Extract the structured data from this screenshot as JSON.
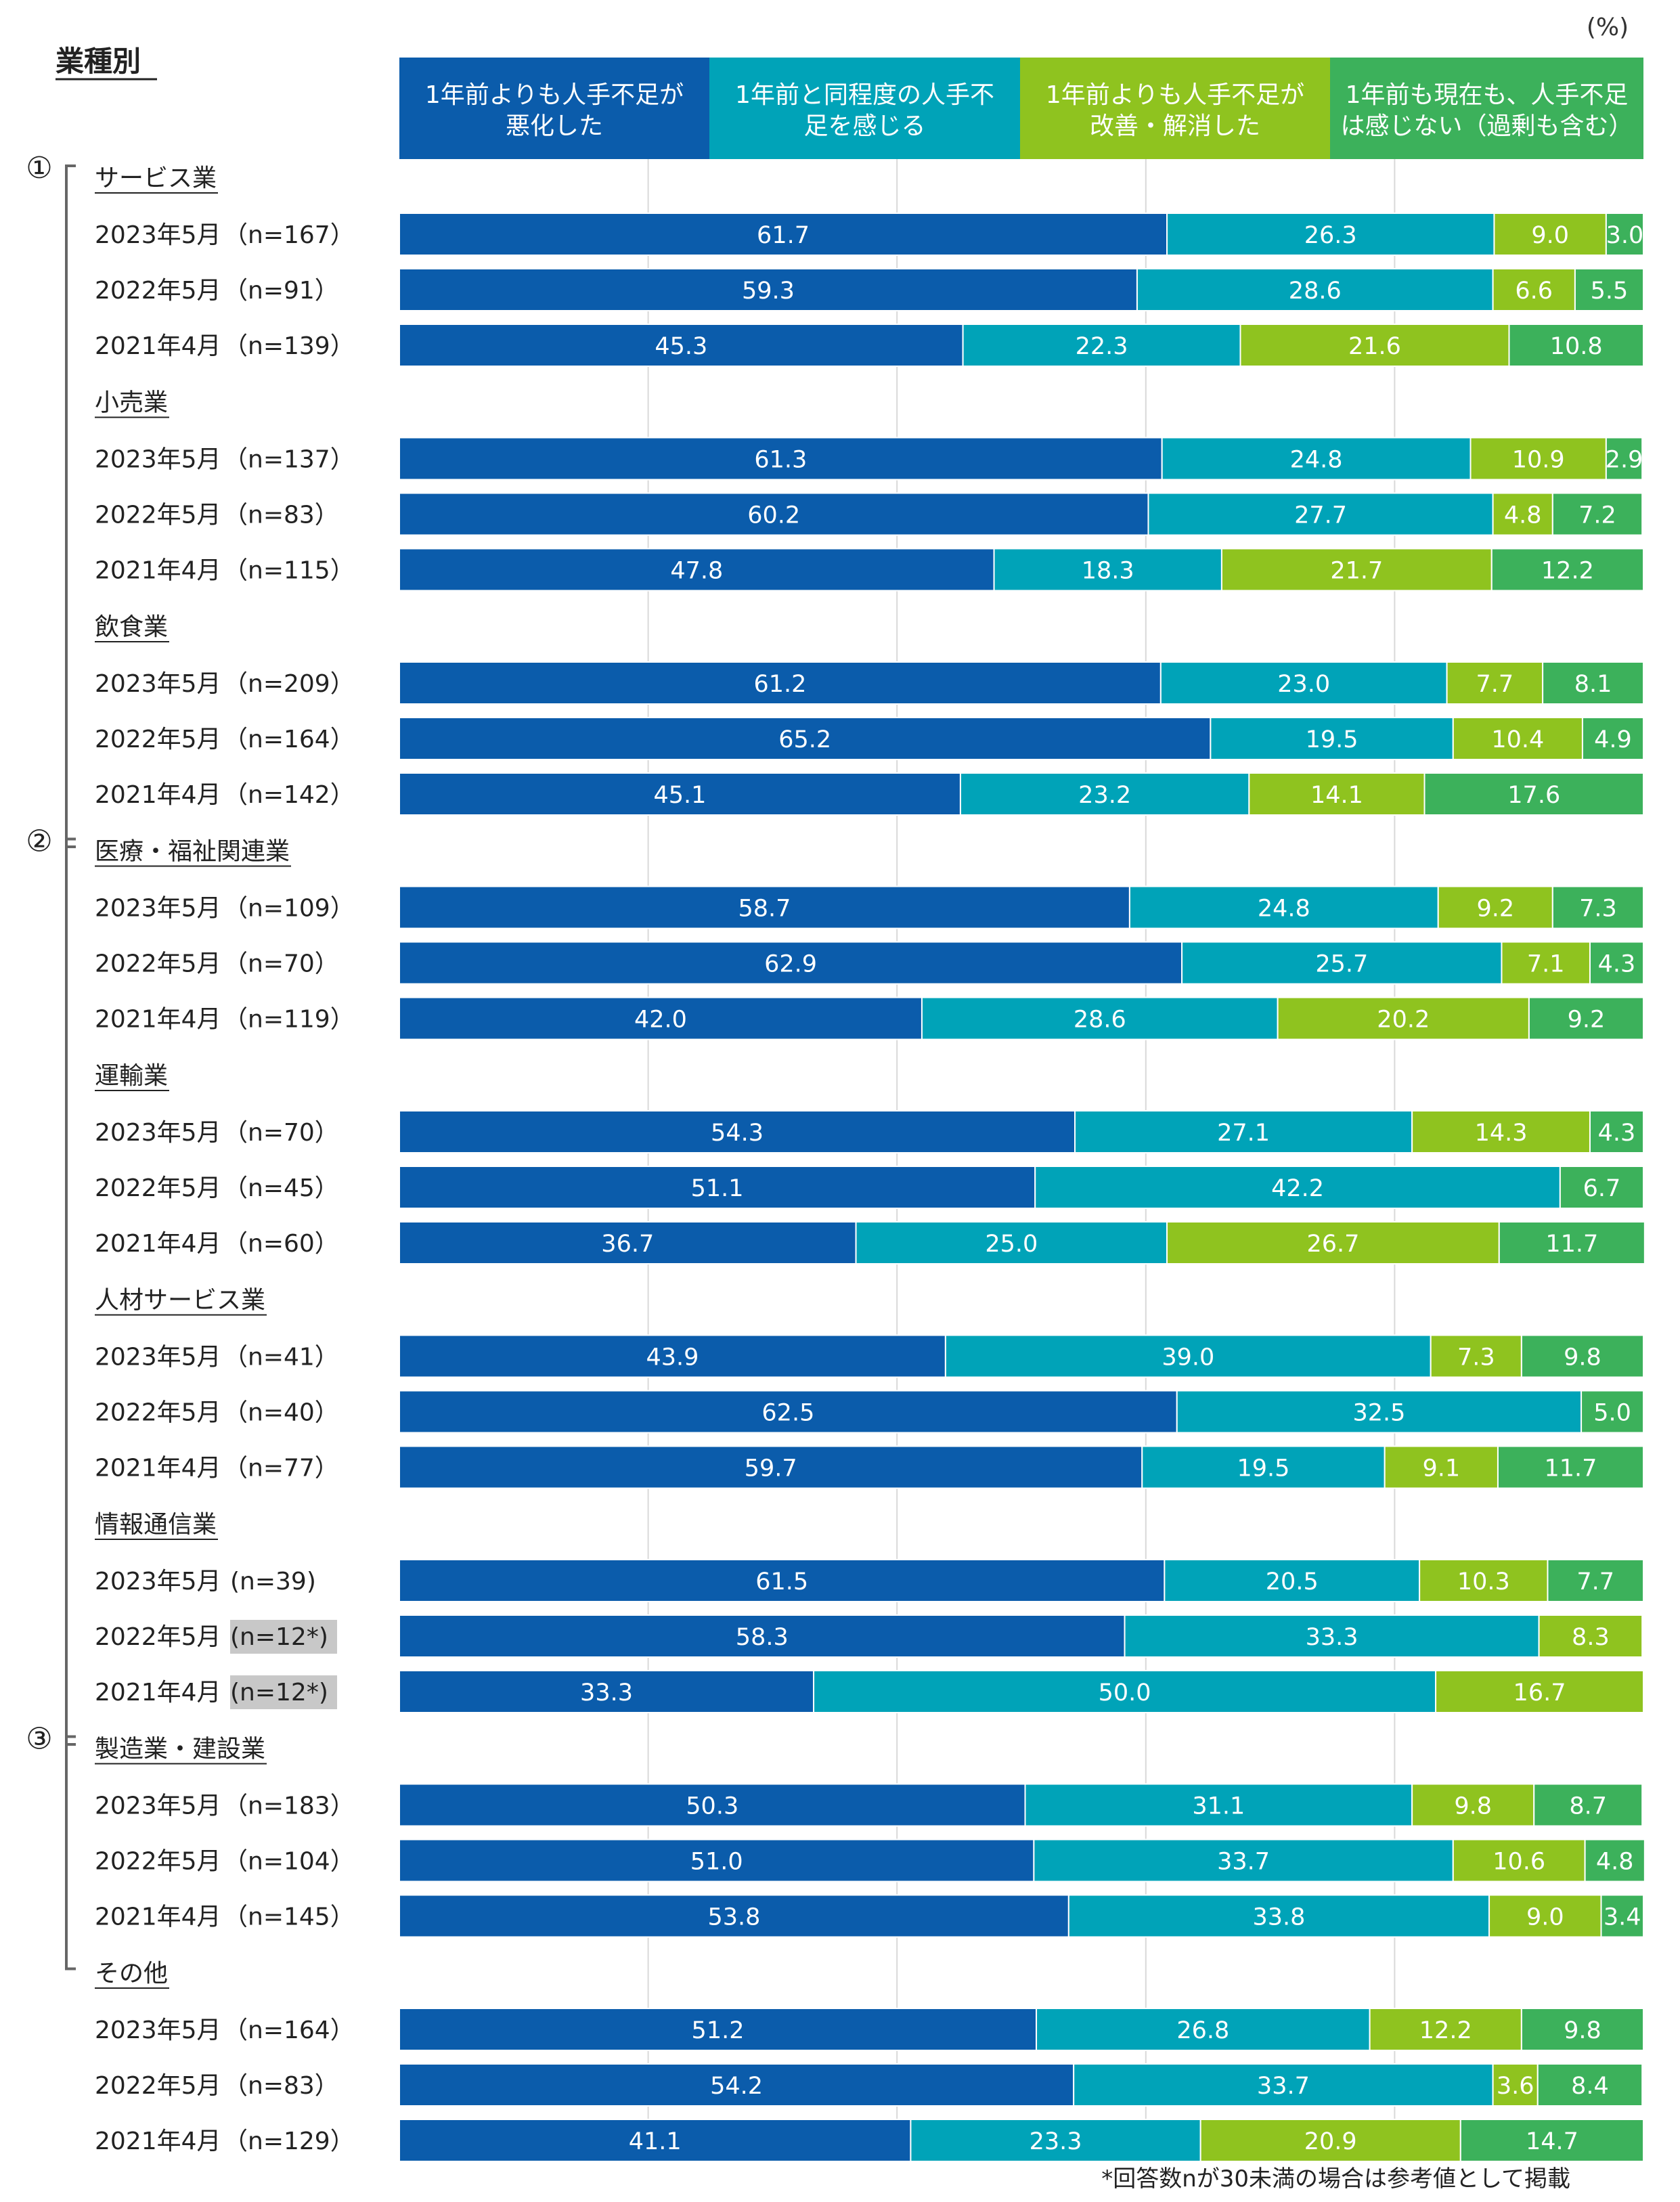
{
  "chart_data": {
    "type": "bar",
    "orientation": "horizontal",
    "stacked": true,
    "title": "業種別",
    "unit_label": "(%)",
    "footnote": "*回答数nが30未満の場合は参考値として掲載",
    "colors": [
      "#0B5CAB",
      "#00A3B8",
      "#8FC31F",
      "#3CB15B"
    ],
    "legend": [
      [
        "1年前よりも人手不足が",
        "悪化した"
      ],
      [
        "1年前と同程度の人手不",
        "足を感じる"
      ],
      [
        "1年前よりも人手不足が",
        "改善・解消した"
      ],
      [
        "1年前も現在も、人手不足",
        "は感じない（過剰も含む）"
      ]
    ],
    "brackets": [
      {
        "label": "①",
        "from_group": 0,
        "to_group": 2
      },
      {
        "label": "②",
        "from_group": 3,
        "to_group": 6
      },
      {
        "label": "③",
        "from_group": 7,
        "to_group": 7
      }
    ],
    "groups": [
      {
        "name": "サービス業",
        "rows": [
          {
            "period": "2023年5月",
            "n": "（n=167）",
            "values": [
              61.7,
              26.3,
              9.0,
              3.0
            ]
          },
          {
            "period": "2022年5月",
            "n": "（n=91）",
            "values": [
              59.3,
              28.6,
              6.6,
              5.5
            ]
          },
          {
            "period": "2021年4月",
            "n": "（n=139）",
            "values": [
              45.3,
              22.3,
              21.6,
              10.8
            ]
          }
        ]
      },
      {
        "name": "小売業",
        "rows": [
          {
            "period": "2023年5月",
            "n": "（n=137）",
            "values": [
              61.3,
              24.8,
              10.9,
              2.9
            ]
          },
          {
            "period": "2022年5月",
            "n": "（n=83）",
            "values": [
              60.2,
              27.7,
              4.8,
              7.2
            ]
          },
          {
            "period": "2021年4月",
            "n": "（n=115）",
            "values": [
              47.8,
              18.3,
              21.7,
              12.2
            ]
          }
        ]
      },
      {
        "name": "飲食業",
        "rows": [
          {
            "period": "2023年5月",
            "n": "（n=209）",
            "values": [
              61.2,
              23.0,
              7.7,
              8.1
            ]
          },
          {
            "period": "2022年5月",
            "n": "（n=164）",
            "values": [
              65.2,
              19.5,
              10.4,
              4.9
            ]
          },
          {
            "period": "2021年4月",
            "n": "（n=142）",
            "values": [
              45.1,
              23.2,
              14.1,
              17.6
            ]
          }
        ]
      },
      {
        "name": "医療・福祉関連業",
        "rows": [
          {
            "period": "2023年5月",
            "n": "（n=109）",
            "values": [
              58.7,
              24.8,
              9.2,
              7.3
            ]
          },
          {
            "period": "2022年5月",
            "n": "（n=70）",
            "values": [
              62.9,
              25.7,
              7.1,
              4.3
            ]
          },
          {
            "period": "2021年4月",
            "n": "（n=119）",
            "values": [
              42.0,
              28.6,
              20.2,
              9.2
            ]
          }
        ]
      },
      {
        "name": "運輸業",
        "rows": [
          {
            "period": "2023年5月",
            "n": "（n=70）",
            "values": [
              54.3,
              27.1,
              14.3,
              4.3
            ]
          },
          {
            "period": "2022年5月",
            "n": "（n=45）",
            "values": [
              51.1,
              42.2,
              0,
              6.7
            ]
          },
          {
            "period": "2021年4月",
            "n": "（n=60）",
            "values": [
              36.7,
              25.0,
              26.7,
              11.7
            ]
          }
        ]
      },
      {
        "name": "人材サービス業",
        "rows": [
          {
            "period": "2023年5月",
            "n": "（n=41）",
            "values": [
              43.9,
              39.0,
              7.3,
              9.8
            ]
          },
          {
            "period": "2022年5月",
            "n": "（n=40）",
            "values": [
              62.5,
              32.5,
              0,
              5.0
            ]
          },
          {
            "period": "2021年4月",
            "n": "（n=77）",
            "values": [
              59.7,
              19.5,
              9.1,
              11.7
            ]
          }
        ]
      },
      {
        "name": "情報通信業",
        "rows": [
          {
            "period": "2023年5月",
            "n": "(n=39)",
            "values": [
              61.5,
              20.5,
              10.3,
              7.7
            ]
          },
          {
            "period": "2022年5月",
            "n": "(n=12*)",
            "values": [
              58.3,
              33.3,
              8.3,
              0
            ],
            "highlight": true
          },
          {
            "period": "2021年4月",
            "n": "(n=12*)",
            "values": [
              33.3,
              50.0,
              16.7,
              0
            ],
            "highlight": true
          }
        ]
      },
      {
        "name": "製造業・建設業",
        "rows": [
          {
            "period": "2023年5月",
            "n": "（n=183）",
            "values": [
              50.3,
              31.1,
              9.8,
              8.7
            ]
          },
          {
            "period": "2022年5月",
            "n": "（n=104）",
            "values": [
              51.0,
              33.7,
              10.6,
              4.8
            ]
          },
          {
            "period": "2021年4月",
            "n": "（n=145）",
            "values": [
              53.8,
              33.8,
              9.0,
              3.4
            ]
          }
        ]
      },
      {
        "name": "その他",
        "rows": [
          {
            "period": "2023年5月",
            "n": "（n=164）",
            "values": [
              51.2,
              26.8,
              12.2,
              9.8
            ]
          },
          {
            "period": "2022年5月",
            "n": "（n=83）",
            "values": [
              54.2,
              33.7,
              3.6,
              8.4
            ]
          },
          {
            "period": "2021年4月",
            "n": "（n=129）",
            "values": [
              41.1,
              23.3,
              20.9,
              14.7
            ]
          }
        ]
      }
    ]
  }
}
